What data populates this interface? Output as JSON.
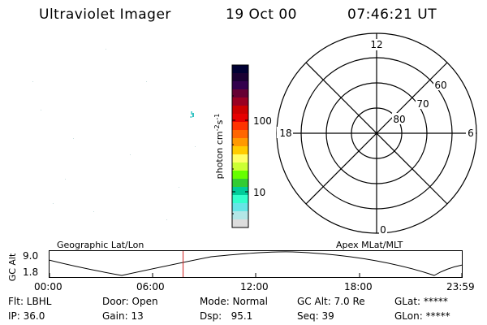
{
  "header": {
    "title": "Ultraviolet Imager",
    "date": "19 Oct 00",
    "time": "07:46:21 UT"
  },
  "colorbar": {
    "unit_label": "photon cm",
    "unit_sup1": "-2",
    "unit_mid": "s",
    "unit_sup2": "-1",
    "tick_100": "100",
    "tick_10": "10",
    "colors": [
      "#000033",
      "#1a0033",
      "#33004d",
      "#660033",
      "#990022",
      "#cc0000",
      "#e60000",
      "#ff3300",
      "#ff6600",
      "#ff9900",
      "#ffcc00",
      "#ffff66",
      "#ccff33",
      "#66ff00",
      "#33cc33",
      "#00cc99",
      "#33ffcc",
      "#66e6e6",
      "#b3e6e6",
      "#dddddd"
    ]
  },
  "polar_plot": {
    "mlt_12": "12",
    "mlt_18": "18",
    "mlt_6": "6",
    "mlt_0": "0",
    "lat_60": "60",
    "lat_70": "70",
    "lat_80": "80"
  },
  "orbit_panel": {
    "left_title": "Geographic Lat/Lon",
    "right_title": "Apex MLat/MLT",
    "axis_label": "GC Alt",
    "y_tick_top": "9.0",
    "y_tick_bottom": "1.8",
    "x_ticks": [
      "00:00",
      "06:00",
      "12:00",
      "18:00",
      "23:59"
    ],
    "current_time_fraction": 0.324,
    "current_time_color": "#d02020"
  },
  "status": {
    "flt": "Flt: LBHL",
    "ip": "IP: 36.0",
    "door": "Door: Open",
    "gain": "Gain: 13",
    "mode": "Mode: Normal",
    "dsp": "Dsp:   95.1",
    "gc_alt": "GC Alt: 7.0 Re",
    "seq": "Seq: 39",
    "glat": "GLat: *****",
    "glon": "GLon: *****"
  }
}
